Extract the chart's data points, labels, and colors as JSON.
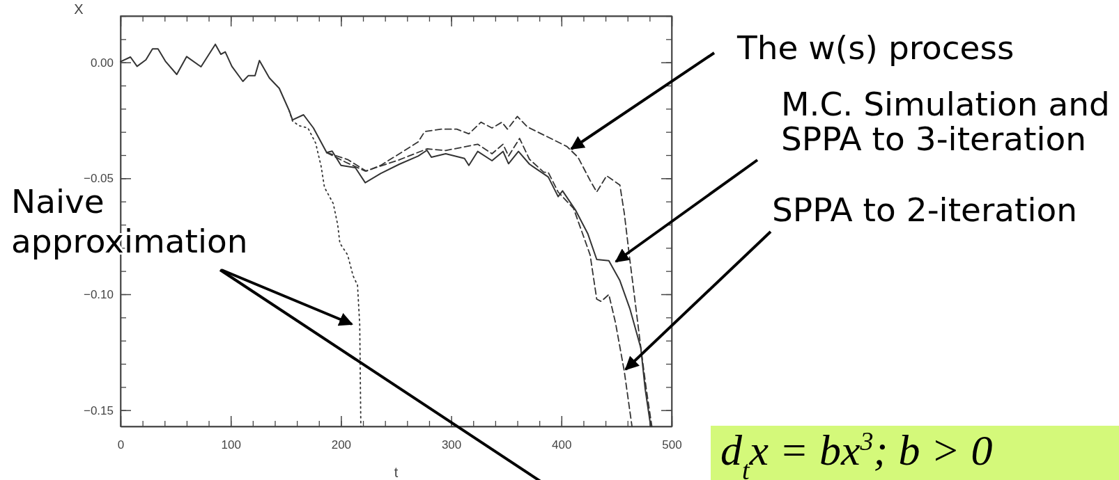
{
  "chart_data": {
    "type": "line",
    "xlabel": "t",
    "ylabel": "X",
    "xlim": [
      0,
      500
    ],
    "ylim": [
      -0.157,
      0.02
    ],
    "xticks": [
      0,
      100,
      200,
      300,
      400,
      500
    ],
    "yticks": [
      {
        "value": 0,
        "label": "0.00"
      },
      {
        "value": -0.05,
        "label": "−0.05"
      },
      {
        "value": -0.1,
        "label": "−0.10"
      },
      {
        "value": -0.15,
        "label": "−0.15"
      }
    ],
    "grid": false,
    "marker": "none",
    "series": [
      {
        "name": "M.C. Simulation and SPPA to 3-iteration",
        "color": "#333333",
        "line_style": "solid",
        "x": [
          0,
          9,
          15,
          23,
          29,
          34,
          41,
          51,
          60,
          73,
          86,
          91,
          95,
          101,
          111,
          116,
          122,
          126,
          135,
          144,
          153,
          156,
          166,
          175,
          187,
          192,
          200,
          213,
          222,
          236,
          253,
          270,
          278,
          282,
          295,
          312,
          316,
          324,
          337,
          347,
          352,
          361,
          371,
          388,
          397,
          401,
          413,
          424,
          432,
          443,
          453,
          462,
          472,
          476,
          481
        ],
        "values": [
          0.0003,
          0.0023,
          -0.0017,
          0.0011,
          0.0058,
          0.0058,
          0.0003,
          -0.0052,
          0.0025,
          -0.0019,
          0.0078,
          0.0035,
          0.0045,
          -0.0017,
          -0.0082,
          -0.0057,
          -0.0057,
          0.0008,
          -0.0067,
          -0.0112,
          -0.0208,
          -0.0248,
          -0.0226,
          -0.0283,
          -0.0389,
          -0.0383,
          -0.0444,
          -0.0454,
          -0.0519,
          -0.0479,
          -0.0439,
          -0.0404,
          -0.0379,
          -0.0409,
          -0.0394,
          -0.0414,
          -0.0444,
          -0.0384,
          -0.0424,
          -0.0384,
          -0.0437,
          -0.0384,
          -0.0439,
          -0.0494,
          -0.0579,
          -0.0554,
          -0.0639,
          -0.074,
          -0.085,
          -0.0855,
          -0.0941,
          -0.1061,
          -0.1232,
          -0.141,
          -0.157
        ]
      },
      {
        "name": "SPPA to 2-iteration",
        "color": "#333333",
        "line_style": "dashed",
        "x": [
          187,
          204,
          222,
          253,
          278,
          295,
          324,
          337,
          347,
          352,
          362,
          371,
          384,
          388,
          397,
          411,
          417,
          426,
          432,
          436,
          443,
          449,
          457,
          464
        ],
        "values": [
          -0.0389,
          -0.043,
          -0.0469,
          -0.042,
          -0.0373,
          -0.038,
          -0.0353,
          -0.0394,
          -0.0353,
          -0.0404,
          -0.0328,
          -0.0418,
          -0.0474,
          -0.0474,
          -0.0559,
          -0.063,
          -0.071,
          -0.083,
          -0.1021,
          -0.1031,
          -0.1001,
          -0.1122,
          -0.1332,
          -0.157
        ]
      },
      {
        "name": "The w(s) process",
        "color": "#333333",
        "line_style": "dashed",
        "x": [
          187,
          206,
          223,
          236,
          253,
          270,
          276,
          291,
          305,
          316,
          327,
          337,
          346,
          351,
          360,
          369,
          386,
          405,
          415,
          426,
          432,
          441,
          453,
          457,
          462,
          466,
          472,
          477,
          482
        ],
        "values": [
          -0.0389,
          -0.0419,
          -0.0469,
          -0.0444,
          -0.0394,
          -0.0343,
          -0.0298,
          -0.0288,
          -0.0288,
          -0.0308,
          -0.0258,
          -0.0283,
          -0.0258,
          -0.0288,
          -0.0233,
          -0.0278,
          -0.0318,
          -0.0363,
          -0.0409,
          -0.0509,
          -0.0559,
          -0.0489,
          -0.0529,
          -0.065,
          -0.085,
          -0.1,
          -0.123,
          -0.141,
          -0.157
        ]
      },
      {
        "name": "Naive approximation",
        "color": "#333333",
        "line_style": "dotted",
        "x": [
          153,
          156,
          162,
          170,
          177,
          182,
          185,
          193,
          197,
          199,
          206,
          211,
          215,
          217,
          218
        ],
        "values": [
          -0.0208,
          -0.0253,
          -0.0273,
          -0.0283,
          -0.0348,
          -0.0449,
          -0.0539,
          -0.0609,
          -0.07,
          -0.078,
          -0.083,
          -0.0921,
          -0.0961,
          -0.1132,
          -0.157
        ]
      }
    ],
    "annotations": [
      "d$_{t}$x = bx$^{3}$; b > 0"
    ]
  }
}
